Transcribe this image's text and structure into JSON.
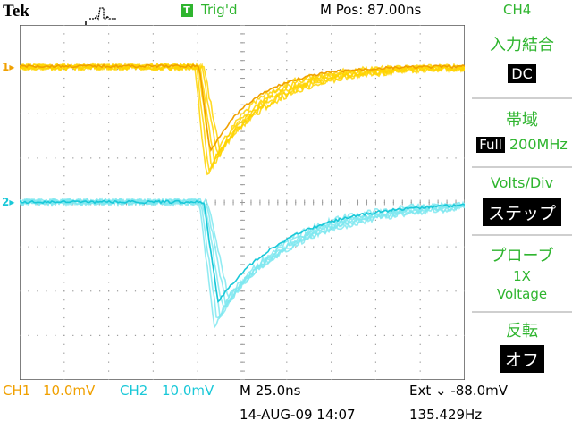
{
  "top": {
    "brand": "Tek",
    "trigger_state_badge": "T",
    "trigger_status": "Trig'd",
    "position": "M Pos: 87.00ns",
    "selected_channel": "CH4"
  },
  "channels": {
    "ch1_marker": "1",
    "ch2_marker": "2"
  },
  "side_menu": {
    "coupling_label": "入力結合",
    "coupling_value": "DC",
    "bandwidth_label": "帯域",
    "bandwidth_badge": "Full",
    "bandwidth_value": "200MHz",
    "voltsdiv_label": "Volts/Div",
    "voltsdiv_value": "ステップ",
    "probe_label": "プローブ",
    "probe_value_1": "1X",
    "probe_value_2": "Voltage",
    "invert_label": "反転",
    "invert_value": "オフ"
  },
  "bottom": {
    "ch1_name": "CH1",
    "ch1_scale": "10.0mV",
    "ch2_name": "CH2",
    "ch2_scale": "10.0mV",
    "timebase": "M 25.0ns",
    "trigger": "Ext ⌄ -88.0mV",
    "date": "14-AUG-09 14:07",
    "frequency": "135.429Hz"
  },
  "colors": {
    "ch1": "#f0a000",
    "ch1_overlay": "#ffd400",
    "ch2": "#19c8d8",
    "ch2_overlay": "#7fe8f0",
    "menu": "#2fb52f"
  },
  "icons": {
    "trigger_waveform": "pulse-icon",
    "trigger_position": "down-arrow-icon"
  }
}
